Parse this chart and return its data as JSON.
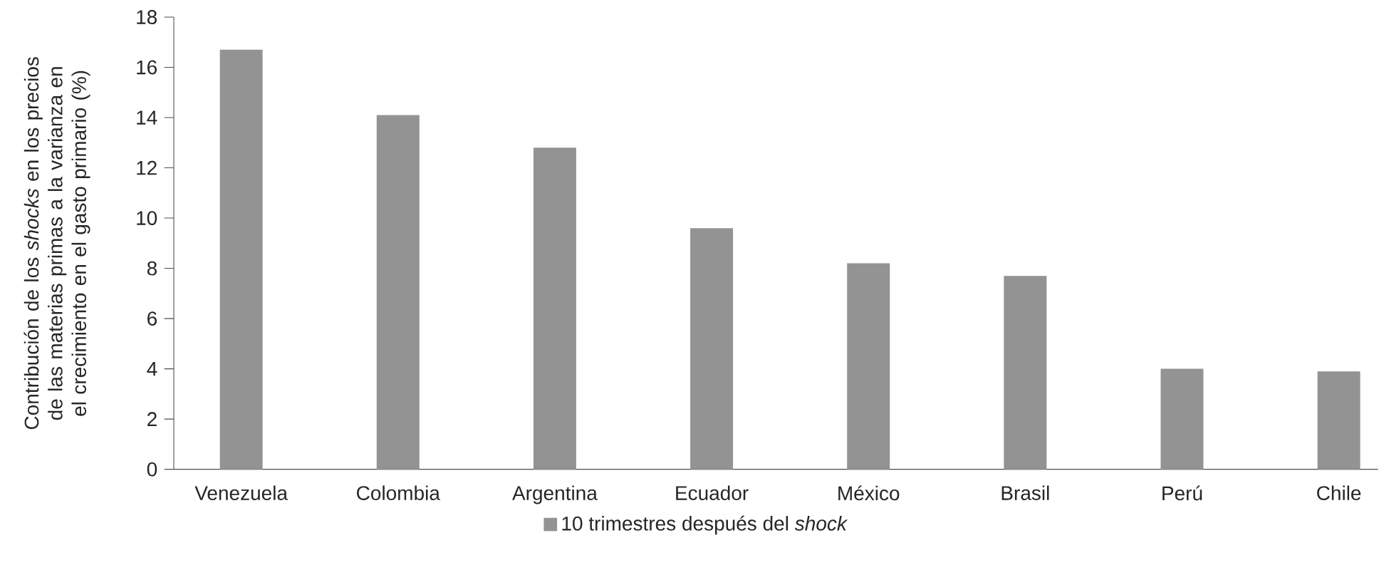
{
  "chart_data": {
    "type": "bar",
    "ylabel": "Contribución de los *shocks* en los precios de las materias primas a la varianza en el crecimiento en el gasto primario (%)",
    "categories": [
      "Venezuela",
      "Colombia",
      "Argentina",
      "Ecuador",
      "México",
      "Brasil",
      "Perú",
      "Chile"
    ],
    "series": [
      {
        "name": "10 trimestres después del *shock*",
        "color": "#939393",
        "values": [
          16.7,
          14.1,
          12.8,
          9.6,
          8.2,
          7.7,
          4.0,
          3.9
        ]
      }
    ],
    "ylim": [
      0,
      18
    ],
    "yticks": [
      0,
      2,
      4,
      6,
      8,
      10,
      12,
      14,
      16,
      18
    ],
    "legend": "bottom"
  }
}
